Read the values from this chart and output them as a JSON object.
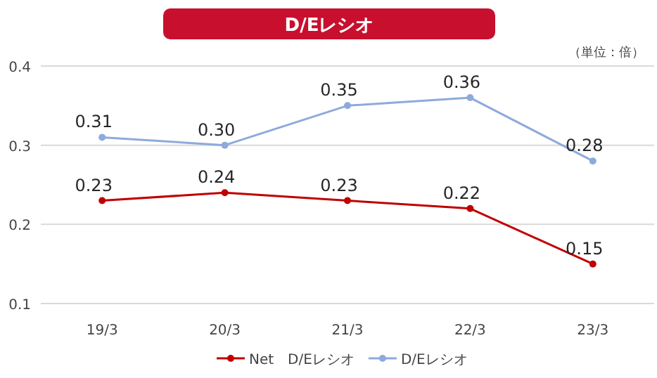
{
  "chart_data": {
    "type": "line",
    "title": "D/Eレシオ",
    "annotations": [
      "（単位：倍）"
    ],
    "categories": [
      "19/3",
      "20/3",
      "21/3",
      "22/3",
      "23/3"
    ],
    "series": [
      {
        "name": "Net　D/Eレシオ",
        "color": "#c00000",
        "values": [
          0.23,
          0.24,
          0.23,
          0.22,
          0.15
        ]
      },
      {
        "name": "D/Eレシオ",
        "color": "#8eaadb",
        "values": [
          0.31,
          0.3,
          0.35,
          0.36,
          0.28
        ],
        "value_labels": [
          "0.31",
          "0.30",
          "0.35",
          "0.36",
          "0.28"
        ]
      }
    ],
    "ylim": [
      0.1,
      0.4
    ],
    "yticks": [
      0.1,
      0.2,
      0.3,
      0.4
    ],
    "grid": "y",
    "legend": "bottom",
    "marker": "circle",
    "data_labels": true,
    "line_style": "solid"
  }
}
